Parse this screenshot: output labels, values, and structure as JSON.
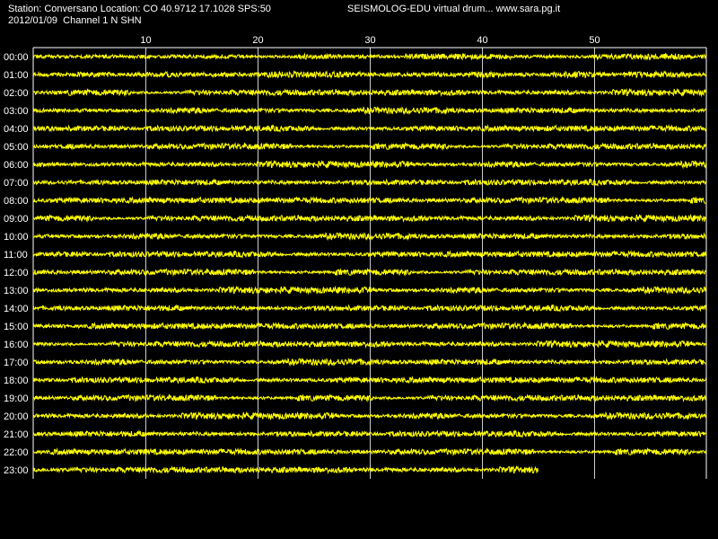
{
  "header": {
    "station_line": "Station: Conversano Location: CO 40.9712 17.1028 SPS:50",
    "date_line": "2012/01/09  Channel 1 N SHN",
    "product_line": "SEISMOLOG-EDU virtual drum... www.sara.pg.it"
  },
  "colors": {
    "background": "#000000",
    "trace": "#ffff00",
    "grid": "#ffffff",
    "text": "#ffffff"
  },
  "chart_data": {
    "type": "line",
    "title": "",
    "xlabel": "",
    "ylabel": "",
    "x_unit_range": [
      0,
      60
    ],
    "x_ticks": [
      10,
      20,
      30,
      40,
      50
    ],
    "row_labels": [
      "00:00",
      "01:00",
      "02:00",
      "03:00",
      "04:00",
      "05:00",
      "06:00",
      "07:00",
      "08:00",
      "09:00",
      "10:00",
      "11:00",
      "12:00",
      "13:00",
      "14:00",
      "15:00",
      "16:00",
      "17:00",
      "18:00",
      "19:00",
      "20:00",
      "21:00",
      "22:00",
      "23:00"
    ],
    "last_row_end_minute": 45,
    "grid": true,
    "series": [
      {
        "values": "continuous low-amplitude seismic noise on every hourly row"
      }
    ]
  }
}
